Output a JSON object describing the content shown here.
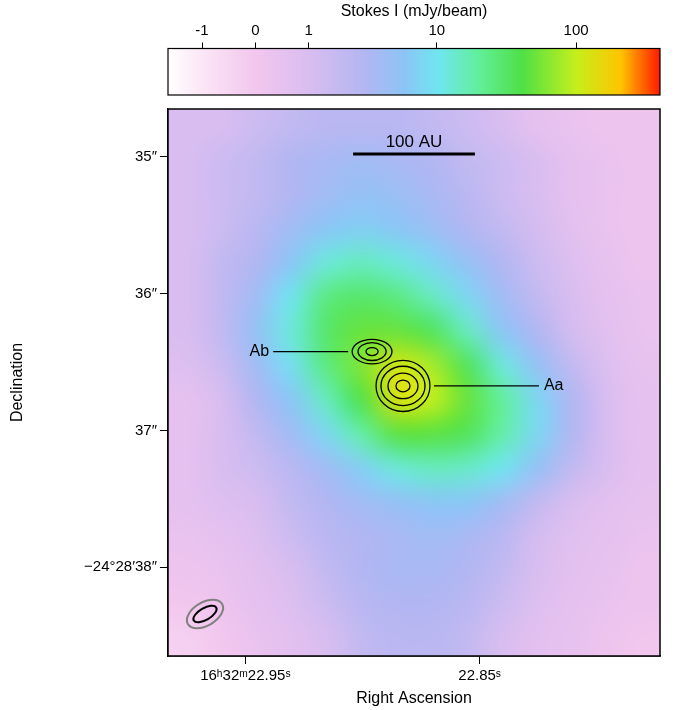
{
  "chart_data": {
    "type": "heatmap",
    "x_label": "Right Ascension",
    "y_label": "Declination",
    "xlim": [
      22.983,
      22.773
    ],
    "xticks": [
      {
        "value": 22.95,
        "label": "16ʰ32ᵐ22.95ˢ"
      },
      {
        "value": 22.85,
        "label": "22.85ˢ"
      }
    ],
    "ylim": [
      38.65,
      34.65
    ],
    "yticks": [
      {
        "value": 35,
        "label": "35″"
      },
      {
        "value": 36,
        "label": "36″"
      },
      {
        "value": 37,
        "label": "37″"
      },
      {
        "value": 38,
        "label": "−24°28′38″"
      }
    ],
    "grid": false,
    "x": [
      22.9755,
      22.9605,
      22.9455,
      22.9305,
      22.9155,
      22.9005,
      22.8855,
      22.8705,
      22.8555,
      22.8405,
      22.8255,
      22.8105,
      22.7955,
      22.7805
    ],
    "y": [
      34.775,
      35.025,
      35.275,
      35.525,
      35.775,
      36.025,
      36.275,
      36.525,
      36.775,
      37.025,
      37.275,
      37.525,
      37.775,
      38.025,
      38.275,
      38.525
    ],
    "cells": [
      [
        1,
        1,
        1.5,
        2,
        2.5,
        2.5,
        2.5,
        2,
        1.5,
        1,
        0.5,
        0.3,
        0.2,
        0.2
      ],
      [
        1,
        1.5,
        2,
        3,
        3.5,
        4,
        3.5,
        3,
        2,
        1.5,
        1,
        0.5,
        0.3,
        0.2
      ],
      [
        1,
        1.5,
        2,
        3,
        4,
        5,
        4.5,
        3.5,
        2.5,
        1.5,
        1,
        0.5,
        0.3,
        0.2
      ],
      [
        1,
        1.5,
        2.5,
        4,
        6,
        7,
        6,
        4.5,
        3,
        2,
        1.2,
        0.6,
        0.3,
        0.2
      ],
      [
        1,
        2,
        3,
        6,
        12,
        15,
        12,
        8,
        5,
        3,
        1.5,
        0.8,
        0.4,
        0.2
      ],
      [
        1,
        2,
        4,
        10,
        25,
        30,
        25,
        15,
        8,
        4,
        2,
        1,
        0.5,
        0.3
      ],
      [
        1,
        2,
        5,
        12,
        30,
        50,
        50,
        35,
        15,
        6,
        3,
        1.2,
        0.6,
        0.3
      ],
      [
        0.8,
        1.5,
        4,
        9,
        25,
        60,
        120,
        80,
        35,
        12,
        5,
        2,
        0.8,
        0.4
      ],
      [
        0.5,
        1,
        3,
        6,
        15,
        40,
        130,
        100,
        50,
        20,
        8,
        3,
        1,
        0.5
      ],
      [
        0.5,
        1,
        2,
        4,
        8,
        18,
        45,
        45,
        35,
        18,
        8,
        3,
        1,
        0.5
      ],
      [
        0.5,
        1,
        1.5,
        2.5,
        4,
        7,
        12,
        15,
        14,
        10,
        5,
        2,
        1,
        0.5
      ],
      [
        0.5,
        0.8,
        1,
        2,
        3,
        4,
        5,
        6,
        6,
        4,
        2,
        1,
        0.6,
        0.4
      ],
      [
        0.3,
        0.5,
        0.8,
        1.5,
        2.5,
        3,
        3.5,
        4,
        3.5,
        2.5,
        1.2,
        0.7,
        0.5,
        0.3
      ],
      [
        0.2,
        0.3,
        0.6,
        1,
        2,
        3,
        3.5,
        3.5,
        3,
        2,
        1,
        0.6,
        0.4,
        0.2
      ],
      [
        0,
        0.2,
        0.5,
        0.8,
        1.5,
        2.5,
        3,
        3,
        2.5,
        1.5,
        0.8,
        0.5,
        0.3,
        0.2
      ],
      [
        -0.3,
        0,
        0.3,
        0.6,
        1,
        2,
        2.5,
        2.5,
        2,
        1,
        0.6,
        0.4,
        0.2,
        0
      ]
    ],
    "colorbar": {
      "label": "Stokes I (mJy/beam)",
      "range": [
        -2,
        400
      ],
      "ticks": [
        -1,
        0,
        1,
        10,
        100
      ]
    },
    "sources": [
      {
        "name": "Ab",
        "x": 22.8959,
        "y": 36.424,
        "contour_rx": [
          0.0085,
          0.006,
          0.0026
        ],
        "contour_ry": [
          0.09,
          0.065,
          0.029
        ]
      },
      {
        "name": "Aa",
        "x": 22.8827,
        "y": 36.675,
        "contour_rx": [
          0.0115,
          0.0094,
          0.0064,
          0.003
        ],
        "contour_ry": [
          0.187,
          0.144,
          0.093,
          0.043
        ]
      }
    ],
    "scale_bar": {
      "label": "100 AU",
      "length": 0.052
    },
    "beams": [
      {
        "major": 0.29,
        "minor": 0.17,
        "pa": -60,
        "color": "#808080"
      },
      {
        "major": 0.19,
        "minor": 0.086,
        "pa": -60,
        "color": "#000000"
      }
    ]
  }
}
